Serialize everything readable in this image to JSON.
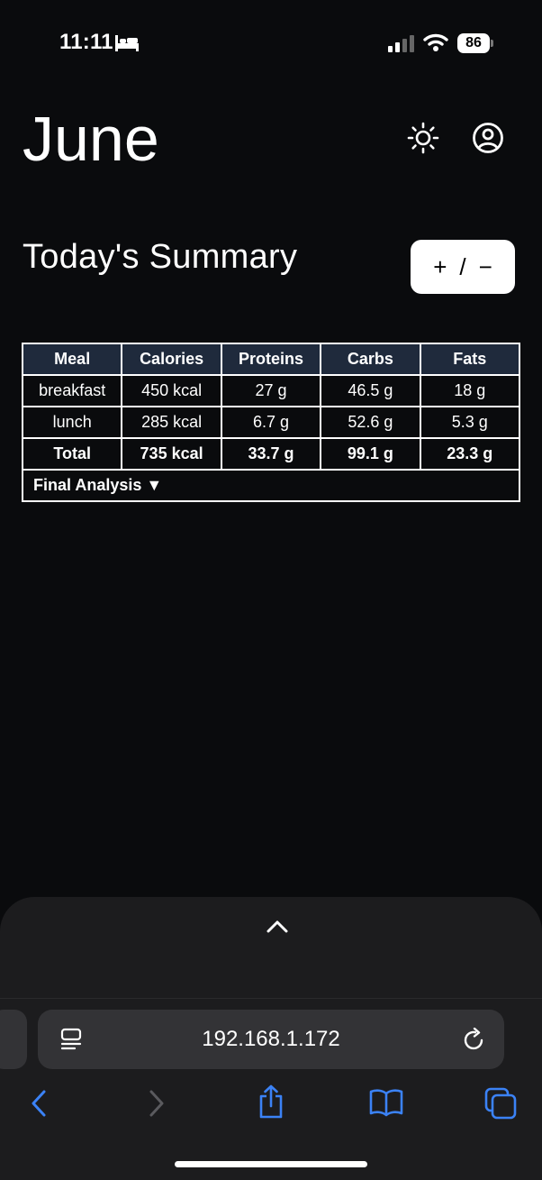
{
  "status_bar": {
    "time": "11:11",
    "battery": "86"
  },
  "header": {
    "month": "June"
  },
  "summary": {
    "title": "Today's Summary",
    "adjust_plus": "+",
    "adjust_sep": "/",
    "adjust_minus": "−"
  },
  "table": {
    "headers": [
      "Meal",
      "Calories",
      "Proteins",
      "Carbs",
      "Fats"
    ],
    "rows": [
      [
        "breakfast",
        "450 kcal",
        "27 g",
        "46.5 g",
        "18 g"
      ],
      [
        "lunch",
        "285 kcal",
        "6.7 g",
        "52.6 g",
        "5.3 g"
      ]
    ],
    "total": [
      "Total",
      "735 kcal",
      "33.7 g",
      "99.1 g",
      "23.3 g"
    ],
    "analysis_label": "Final Analysis ▼"
  },
  "browser": {
    "url": "192.168.1.172"
  },
  "colors": {
    "background": "#0a0b0d",
    "table_header": "#1f2a3c",
    "accent": "#3b82f6"
  }
}
